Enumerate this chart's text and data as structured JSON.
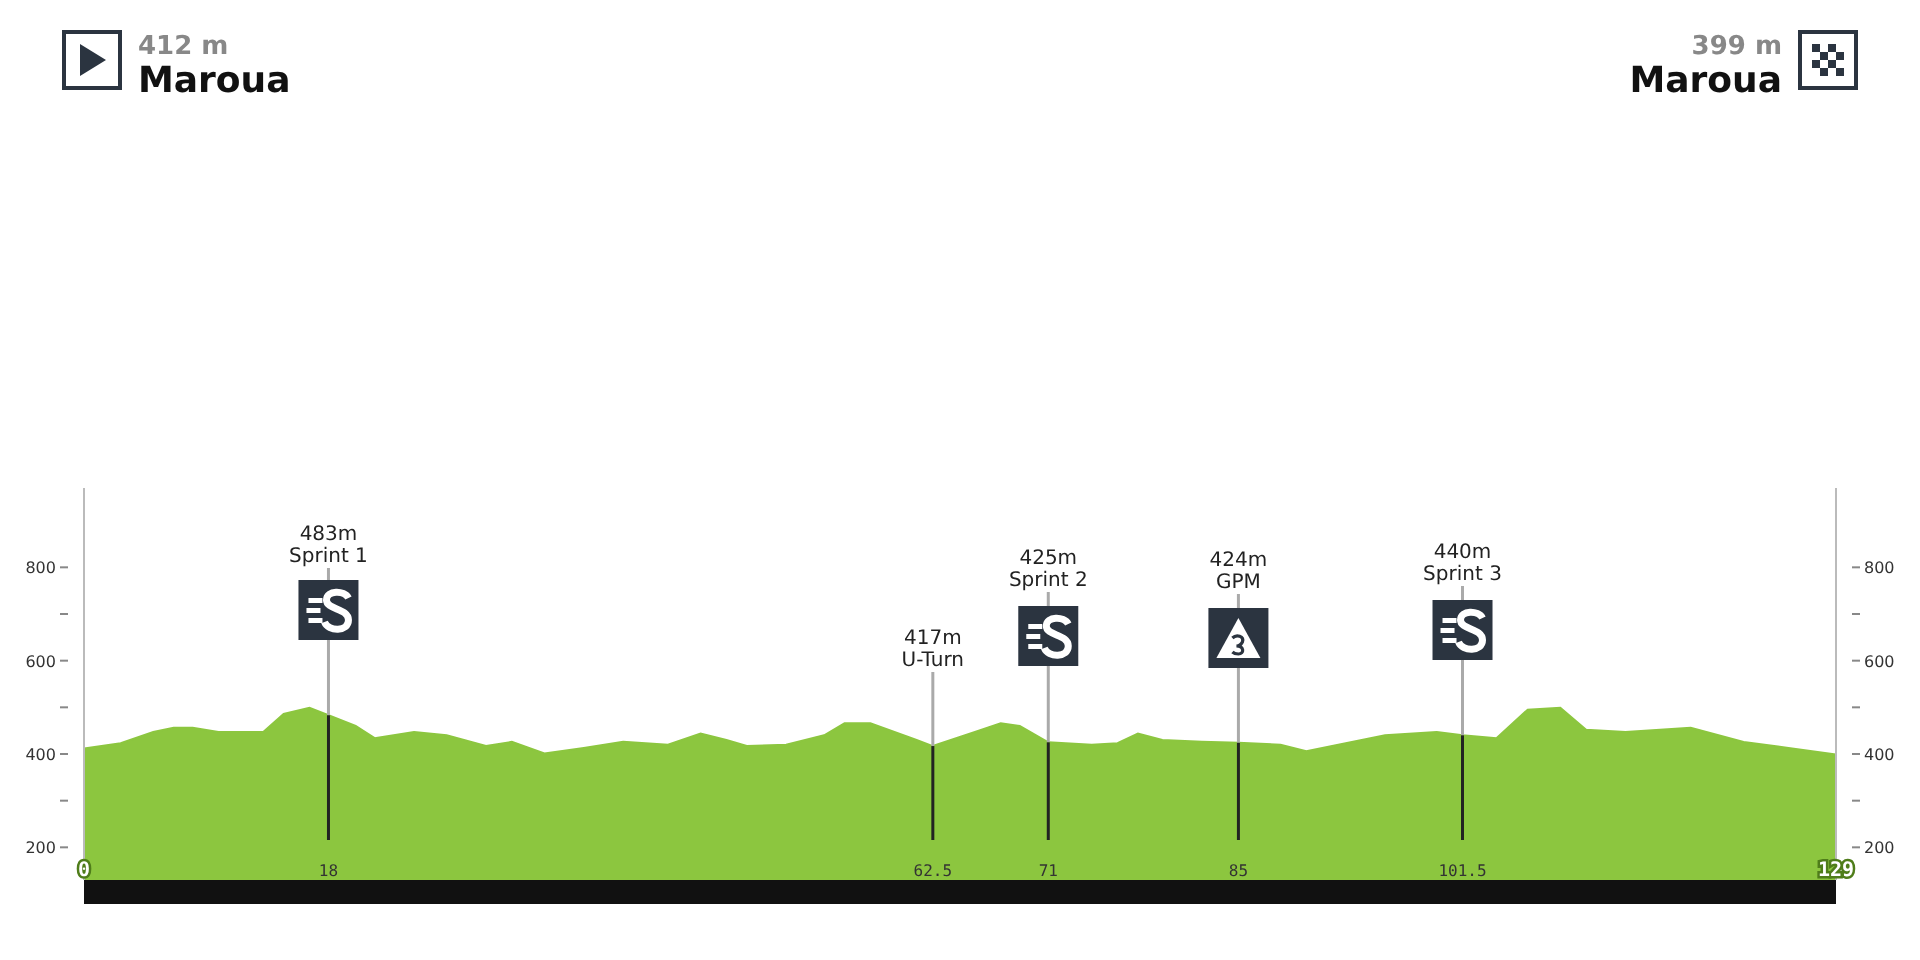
{
  "chart_data": {
    "type": "area",
    "x": [
      0,
      2.7,
      5.1,
      6.6,
      8.0,
      9.9,
      13.2,
      14.7,
      16.6,
      18,
      20,
      21.4,
      24.3,
      26.7,
      29.6,
      31.5,
      33.9,
      36.8,
      39.7,
      43,
      45.4,
      47.3,
      48.8,
      51.7,
      54.5,
      56,
      57.9,
      61.3,
      62.5,
      65.6,
      67.5,
      68.9,
      71,
      74.2,
      76.1,
      77.6,
      79.4,
      82.3,
      85,
      88.1,
      90,
      92.9,
      95.8,
      99.6,
      101.5,
      104,
      106.3,
      108.7,
      110.6,
      113.5,
      118.3,
      122.2,
      125.5,
      129
    ],
    "series": [
      {
        "color": "#8cc63f",
        "values": [
          412,
          423,
          447,
          456,
          456,
          447,
          447,
          486,
          499,
          483,
          460,
          434,
          447,
          440,
          417,
          426,
          401,
          413,
          426,
          420,
          444,
          430,
          417,
          420,
          440,
          466,
          466,
          430,
          417,
          447,
          466,
          460,
          425,
          420,
          423,
          444,
          430,
          426,
          424,
          420,
          406,
          423,
          440,
          447,
          440,
          434,
          495,
          499,
          452,
          447,
          456,
          426,
          413,
          399
        ]
      }
    ],
    "xlim": [
      0,
      129
    ],
    "xticks": [
      0,
      18,
      62.5,
      71,
      85,
      101.5,
      129
    ],
    "ylim": [
      130,
      970
    ],
    "yticks": [
      200,
      {
        "value": 300,
        "label": null
      },
      400,
      {
        "value": 500,
        "label": null
      },
      600,
      {
        "value": 700,
        "label": null
      },
      800
    ],
    "y2lim": [
      130,
      970
    ],
    "y2ticks": [
      200,
      {
        "value": 300,
        "label": null
      },
      400,
      {
        "value": 500,
        "label": null
      },
      600,
      {
        "value": 700,
        "label": null
      },
      800
    ],
    "annotations": [
      "412 m\nMaroua",
      {
        "text": "483m\nSprint 1",
        "x": 18,
        "y": 483
      },
      {
        "text": "417m\nU-Turn",
        "x": 62.5,
        "y": 417
      },
      {
        "text": "425m\nSprint 2",
        "x": 71,
        "y": 425
      },
      {
        "text": "424m\nGPM",
        "x": 85,
        "y": 424
      },
      {
        "text": "440m\nSprint 3",
        "x": 101.5,
        "y": 440
      },
      "399 m\nMaroua"
    ],
    "grid": false,
    "legend": false,
    "marker": "none"
  }
}
